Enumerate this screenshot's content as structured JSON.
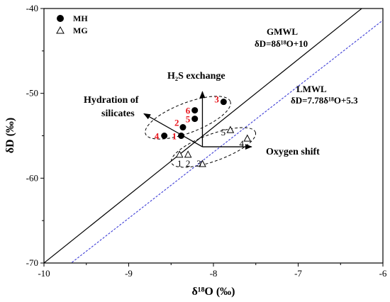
{
  "chart_data": {
    "type": "scatter",
    "xlabel": "δ¹⁸O (‰)",
    "ylabel": "δD (‰)",
    "xlim": [
      -10,
      -6
    ],
    "ylim": [
      -70,
      -40
    ],
    "x_ticks": [
      -10,
      -9,
      -8,
      -7,
      -6
    ],
    "y_ticks": [
      -70,
      -60,
      -50,
      -40
    ],
    "x_tick_labels": [
      "-10",
      "-9",
      "-8",
      "-7",
      "-6"
    ],
    "y_tick_labels": [
      "-70",
      "-60",
      "-50",
      "-40"
    ],
    "grid": false,
    "legend_position": "top-left",
    "series": [
      {
        "name": "MH",
        "marker": "filled-circle",
        "label_color": "#e8141b",
        "points": [
          {
            "label": "1",
            "x": -8.38,
            "y": -55.0
          },
          {
            "label": "2",
            "x": -8.36,
            "y": -54.0
          },
          {
            "label": "3",
            "x": -7.88,
            "y": -51.0
          },
          {
            "label": "4",
            "x": -8.58,
            "y": -55.0
          },
          {
            "label": "5",
            "x": -8.22,
            "y": -53.0
          },
          {
            "label": "6",
            "x": -8.22,
            "y": -52.0
          }
        ]
      },
      {
        "name": "MG",
        "marker": "open-triangle",
        "label_color": "#000000",
        "points": [
          {
            "label": "1",
            "x": -8.4,
            "y": -57.2
          },
          {
            "label": "2",
            "x": -8.3,
            "y": -57.2
          },
          {
            "label": "3",
            "x": -8.13,
            "y": -58.3
          },
          {
            "label": "4",
            "x": -7.6,
            "y": -55.3
          },
          {
            "label": "5",
            "x": -7.8,
            "y": -54.3
          }
        ]
      }
    ],
    "lines": [
      {
        "name": "GMWL",
        "equation": "δD=8δ¹⁸O+10",
        "slope": 8,
        "intercept": 10,
        "color": "#000000",
        "style": "solid"
      },
      {
        "name": "LMWL",
        "equation": "δD=7.78δ¹⁸O+5.3",
        "slope": 7.78,
        "intercept": 5.3,
        "color": "#3d3dd6",
        "style": "dotted"
      }
    ],
    "annotations": [
      {
        "text": "H₂S exchange",
        "direction": "up",
        "origin": [
          -8.13,
          -56.3
        ],
        "tip": [
          -8.13,
          -49.8
        ]
      },
      {
        "text": "Hydration of silicates",
        "direction": "up-left",
        "origin": [
          -8.13,
          -56.3
        ],
        "tip": [
          -8.82,
          -52.4
        ]
      },
      {
        "text": "Oxygen shift",
        "direction": "right",
        "origin": [
          -8.13,
          -56.3
        ],
        "tip": [
          -7.55,
          -56.3
        ]
      }
    ]
  }
}
